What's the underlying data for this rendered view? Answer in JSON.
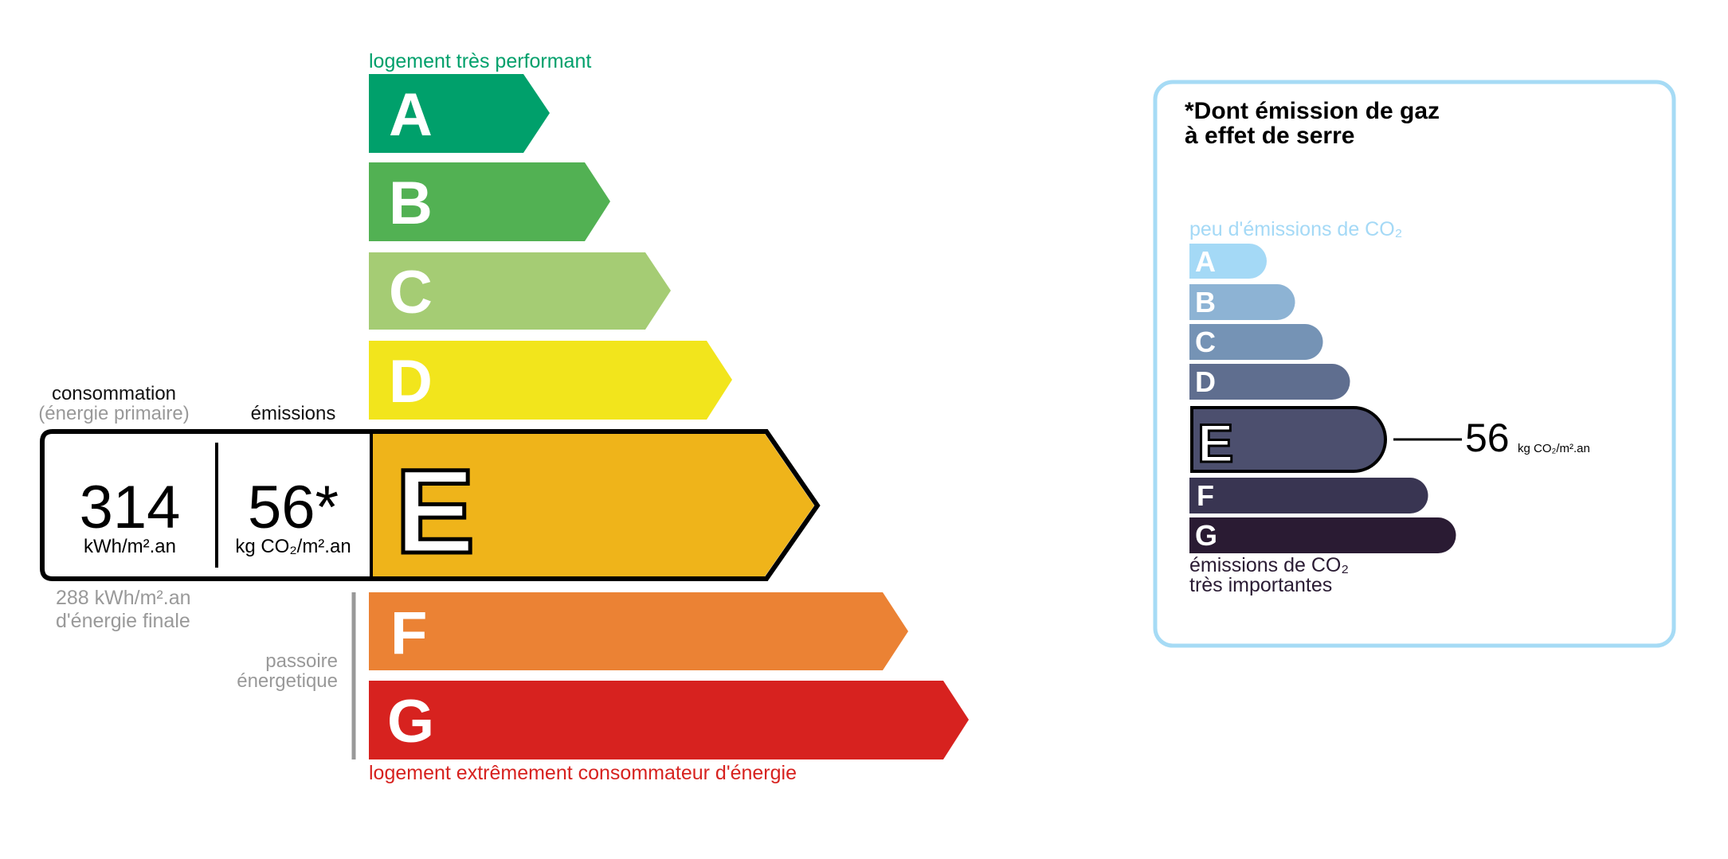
{
  "energy": {
    "top_label": "logement très performant",
    "bottom_label": "logement extrêmement consommateur d'énergie",
    "classes": [
      {
        "letter": "A",
        "color": "#00a06b"
      },
      {
        "letter": "B",
        "color": "#52b153"
      },
      {
        "letter": "C",
        "color": "#a5cc74"
      },
      {
        "letter": "D",
        "color": "#f2e51c"
      },
      {
        "letter": "E",
        "color": "#efb41a"
      },
      {
        "letter": "F",
        "color": "#eb8234"
      },
      {
        "letter": "G",
        "color": "#d7221f"
      }
    ],
    "current_class": "E",
    "consumption_label": "consommation",
    "consumption_sub": "(énergie primaire)",
    "emissions_label": "émissions",
    "consumption_value": "314",
    "consumption_unit": "kWh/m².an",
    "emissions_value": "56*",
    "emissions_unit": "kg CO₂/m².an",
    "final_energy_value": "288 kWh/m².an",
    "final_energy_label": "d'énergie finale",
    "passoire_line1": "passoire",
    "passoire_line2": "énergetique"
  },
  "ghg": {
    "title_line1": "*Dont émission de gaz",
    "title_line2": "à effet de serre",
    "top_label": "peu d'émissions de CO₂",
    "bottom_line1": "émissions de CO₂",
    "bottom_line2": "très importantes",
    "classes": [
      {
        "letter": "A",
        "color": "#a4d9f6"
      },
      {
        "letter": "B",
        "color": "#8db3d4"
      },
      {
        "letter": "C",
        "color": "#7593b5"
      },
      {
        "letter": "D",
        "color": "#5f6e8f"
      },
      {
        "letter": "E",
        "color": "#4c4f6e"
      },
      {
        "letter": "F",
        "color": "#393552"
      },
      {
        "letter": "G",
        "color": "#2a1b33"
      }
    ],
    "current_class": "E",
    "value": "56",
    "unit": "kg CO₂/m².an",
    "border_color": "#a6dbf5"
  }
}
